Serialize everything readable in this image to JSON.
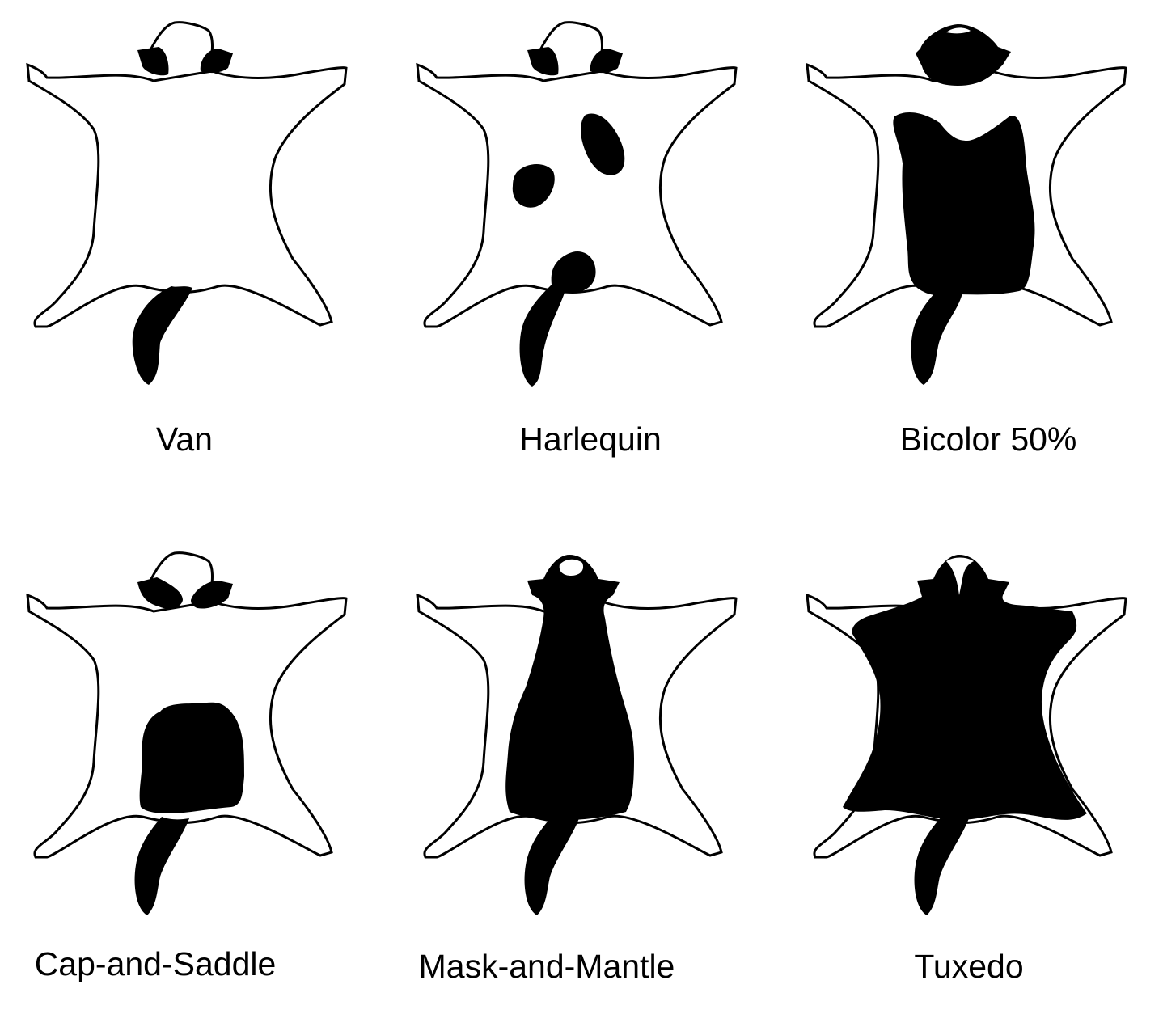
{
  "colors": {
    "background": "#ffffff",
    "outline": "#000000",
    "pattern": "#000000",
    "base": "#ffffff"
  },
  "patterns": [
    {
      "id": "van",
      "label": "Van"
    },
    {
      "id": "harlequin",
      "label": "Harlequin"
    },
    {
      "id": "bicolor",
      "label": "Bicolor 50%"
    },
    {
      "id": "cap-saddle",
      "label": "Cap-and-Saddle"
    },
    {
      "id": "mask-mantle",
      "label": "Mask-and-Mantle"
    },
    {
      "id": "tuxedo",
      "label": "Tuxedo"
    }
  ]
}
